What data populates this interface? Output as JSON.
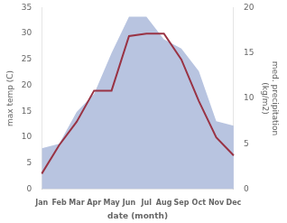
{
  "chart_data": {
    "type": "line",
    "categories": [
      "Jan",
      "Feb",
      "Mar",
      "Apr",
      "May",
      "Jun",
      "Jul",
      "Aug",
      "Sep",
      "Oct",
      "Nov",
      "Dec"
    ],
    "series": [
      {
        "type": "area",
        "axis": "y2",
        "color": "#b8c4e0",
        "values": [
          4.5,
          5.0,
          8.5,
          10.5,
          15.0,
          19.0,
          19.0,
          16.5,
          15.5,
          13.0,
          7.5,
          7.0
        ]
      },
      {
        "type": "line",
        "color": "#993344",
        "values": [
          3.0,
          8.5,
          13.0,
          19.0,
          19.0,
          29.5,
          30.0,
          30.0,
          25.0,
          17.0,
          10.0,
          6.5
        ]
      }
    ],
    "xlabel": "date (month)",
    "ylabel": "max temp (C)",
    "y2label": "med. precipitation\n(kg/m2)",
    "ylim": [
      0,
      35
    ],
    "yticks": [
      0,
      5,
      10,
      15,
      20,
      25,
      30,
      35
    ],
    "y2lim": [
      0,
      20
    ],
    "y2ticks": [
      0,
      5,
      10,
      15,
      20
    ],
    "grid": false
  }
}
